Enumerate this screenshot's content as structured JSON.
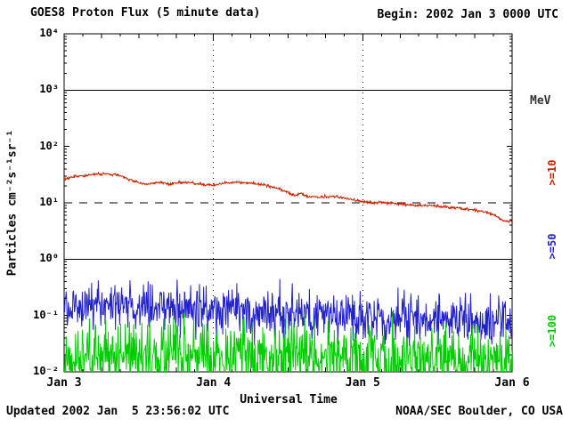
{
  "footer": {
    "updated": "Updated 2002 Jan  5 23:56:02 UTC",
    "credit": "NOAA/SEC Boulder, CO USA"
  },
  "chart_data": {
    "type": "line",
    "title": "GOES8 Proton Flux (5 minute data)",
    "begin_label": "Begin: 2002 Jan 3 0000 UTC",
    "xlabel": "Universal Time",
    "ylabel": "Particles cm⁻²s⁻¹sr⁻¹",
    "right_axis_unit": "MeV",
    "x_ticks": [
      "Jan 3",
      "Jan 4",
      "Jan 5",
      "Jan 6"
    ],
    "x_range_days": [
      0,
      3
    ],
    "x_minor_tick_hours": 3,
    "y_log_range": [
      -2,
      4
    ],
    "y_tick_labels": [
      "10⁴",
      "10³",
      "10²",
      "10¹",
      "10⁰",
      "10⁻¹",
      "10⁻²"
    ],
    "solid_gridlines": [
      1000,
      1
    ],
    "threshold": {
      "value": 10,
      "style": "dashed"
    },
    "vertical_gridlines_days": [
      1,
      2
    ],
    "points_per_day": 288,
    "series": [
      {
        "name": ">=10",
        "unit": "MeV",
        "color": "#cc2200",
        "seed": 3,
        "noise_log10": 0.012,
        "keypoints_day_flux": [
          [
            0.0,
            26
          ],
          [
            0.05,
            28
          ],
          [
            0.1,
            30
          ],
          [
            0.17,
            31
          ],
          [
            0.22,
            32
          ],
          [
            0.3,
            33
          ],
          [
            0.37,
            31
          ],
          [
            0.42,
            27
          ],
          [
            0.47,
            24
          ],
          [
            0.52,
            22
          ],
          [
            0.57,
            21.5
          ],
          [
            0.62,
            23
          ],
          [
            0.7,
            22
          ],
          [
            0.78,
            23
          ],
          [
            0.85,
            22.5
          ],
          [
            0.92,
            21.5
          ],
          [
            0.97,
            20.5
          ],
          [
            1.02,
            21
          ],
          [
            1.08,
            22.5
          ],
          [
            1.15,
            23
          ],
          [
            1.25,
            22.5
          ],
          [
            1.33,
            21
          ],
          [
            1.4,
            19
          ],
          [
            1.45,
            17
          ],
          [
            1.5,
            15.5
          ],
          [
            1.54,
            13.5
          ],
          [
            1.58,
            14.5
          ],
          [
            1.63,
            13
          ],
          [
            1.7,
            12.5
          ],
          [
            1.78,
            13
          ],
          [
            1.85,
            12.5
          ],
          [
            1.93,
            11.5
          ],
          [
            2.0,
            10.5
          ],
          [
            2.07,
            10
          ],
          [
            2.15,
            10.2
          ],
          [
            2.25,
            9.5
          ],
          [
            2.35,
            9
          ],
          [
            2.45,
            9
          ],
          [
            2.55,
            8.5
          ],
          [
            2.65,
            8
          ],
          [
            2.75,
            7.5
          ],
          [
            2.82,
            7
          ],
          [
            2.88,
            6
          ],
          [
            2.93,
            5
          ],
          [
            2.97,
            4.6
          ],
          [
            3.0,
            4.8
          ]
        ]
      },
      {
        "name": ">=50",
        "unit": "MeV",
        "color": "#2222cc",
        "seed": 12,
        "noise_log10": 0.2,
        "keypoints_day_flux": [
          [
            0.0,
            0.17
          ],
          [
            0.2,
            0.16
          ],
          [
            0.5,
            0.15
          ],
          [
            0.8,
            0.14
          ],
          [
            1.1,
            0.13
          ],
          [
            1.5,
            0.115
          ],
          [
            1.9,
            0.1
          ],
          [
            2.3,
            0.09
          ],
          [
            2.7,
            0.085
          ],
          [
            3.0,
            0.08
          ]
        ]
      },
      {
        "name": ">=100",
        "unit": "MeV",
        "color": "#00cc00",
        "seed": 27,
        "noise_log10": 0.3,
        "floor": 0.01,
        "keypoints_day_flux": [
          [
            0.0,
            0.022
          ],
          [
            0.5,
            0.021
          ],
          [
            1.0,
            0.02
          ],
          [
            1.5,
            0.019
          ],
          [
            2.0,
            0.018
          ],
          [
            2.5,
            0.017
          ],
          [
            3.0,
            0.016
          ]
        ]
      }
    ]
  }
}
